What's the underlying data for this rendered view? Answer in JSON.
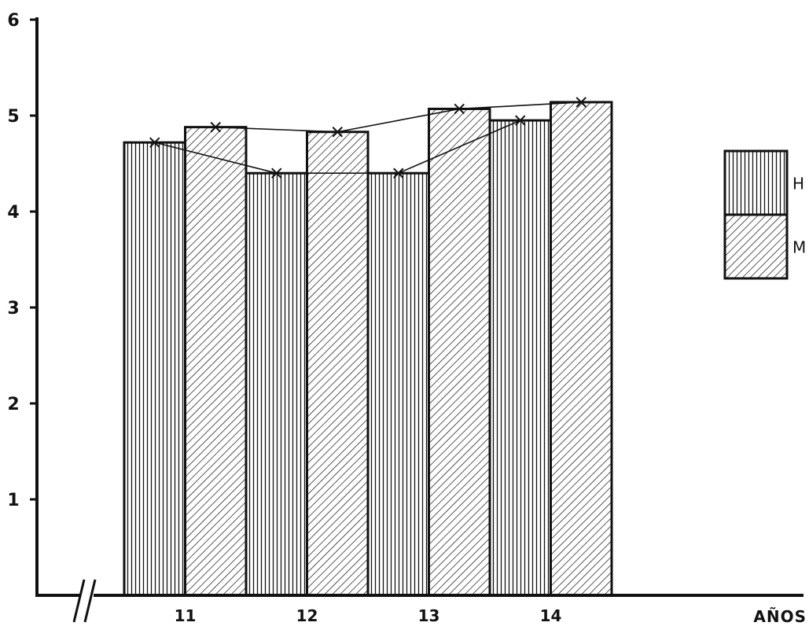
{
  "chart_data": {
    "type": "bar",
    "categories": [
      "11",
      "12",
      "13",
      "14"
    ],
    "series": [
      {
        "name": "H",
        "pattern": "vertical-stripes",
        "values": [
          4.72,
          4.4,
          4.4,
          4.95
        ]
      },
      {
        "name": "M",
        "pattern": "diagonal-hatch",
        "values": [
          4.88,
          4.83,
          5.07,
          5.14
        ]
      }
    ],
    "xlabel": "AÑOS",
    "ylim": [
      0,
      6
    ],
    "yticks": [
      1,
      2,
      3,
      4,
      5,
      6
    ],
    "grid": false,
    "legend_position": "right",
    "line_overlay": true,
    "marker": "x",
    "x_axis_break": true
  },
  "colors": {
    "ink": "#111111",
    "background": "#ffffff"
  }
}
